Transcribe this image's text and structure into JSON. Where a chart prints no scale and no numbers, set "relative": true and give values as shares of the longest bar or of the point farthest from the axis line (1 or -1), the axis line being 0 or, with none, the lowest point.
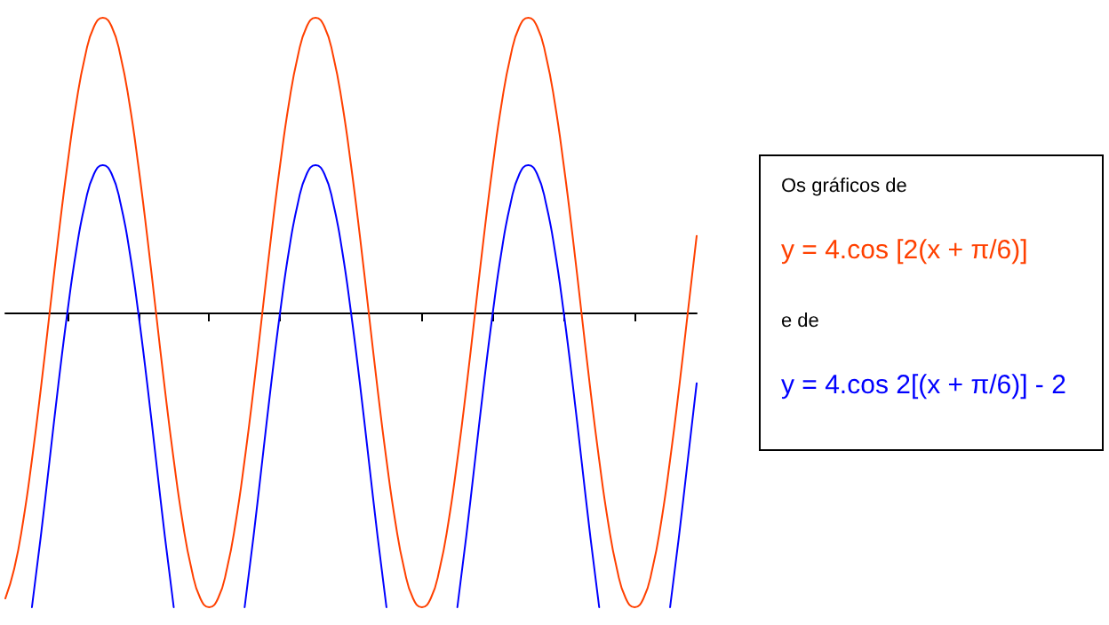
{
  "chart_data": {
    "type": "line",
    "relative": true,
    "grid": false,
    "legend": "right",
    "marker": "none",
    "line_style": "solid",
    "annotations": [
      "Os gráficos de",
      "e de"
    ],
    "categories": [
      null,
      null,
      null,
      null,
      null,
      null,
      null,
      null,
      null,
      null,
      null,
      null,
      null,
      null,
      null,
      null,
      null,
      null,
      null,
      null,
      null,
      null,
      null,
      null,
      null,
      null,
      null,
      null,
      null,
      null,
      null,
      null,
      null,
      null,
      null,
      null,
      null,
      null,
      null,
      null,
      null,
      null,
      null,
      null,
      null,
      null,
      null,
      null,
      null,
      null,
      null,
      null,
      null,
      null,
      null,
      null,
      null,
      null,
      null,
      null,
      null,
      null,
      null,
      null,
      null,
      null,
      null,
      null,
      null,
      null,
      null,
      null,
      null,
      null,
      null,
      null,
      null,
      null,
      null
    ],
    "series": [
      {
        "name": "y = 4.cos [2(x + π/6)]",
        "color": "#ff4000",
        "values": [
          -0.97,
          -0.87,
          -0.71,
          -0.5,
          -0.26,
          0,
          0.26,
          0.5,
          0.71,
          0.87,
          0.97,
          1,
          0.97,
          0.87,
          0.71,
          0.5,
          0.26,
          0,
          -0.26,
          -0.5,
          -0.71,
          -0.87,
          -0.97,
          -1,
          -0.97,
          -0.87,
          -0.71,
          -0.5,
          -0.26,
          0,
          0.26,
          0.5,
          0.71,
          0.87,
          0.97,
          1,
          0.97,
          0.87,
          0.71,
          0.5,
          0.26,
          0,
          -0.26,
          -0.5,
          -0.71,
          -0.87,
          -0.97,
          -1,
          -0.97,
          -0.87,
          -0.71,
          -0.5,
          -0.26,
          0,
          0.26,
          0.5,
          0.71,
          0.87,
          0.97,
          1,
          0.97,
          0.87,
          0.71,
          0.5,
          0.26,
          0,
          -0.26,
          -0.5,
          -0.71,
          -0.87,
          -0.97,
          -1,
          -0.97,
          -0.87,
          -0.71,
          -0.5,
          -0.26,
          0,
          0.26
        ]
      },
      {
        "name": "y = 4.cos 2[(x + π/6)] - 2",
        "color": "#0000ff",
        "values": [
          null,
          null,
          null,
          -1,
          -0.76,
          -0.5,
          -0.24,
          0,
          0.21,
          0.37,
          0.47,
          0.5,
          0.47,
          0.37,
          0.21,
          0,
          -0.24,
          -0.5,
          -0.76,
          -1,
          null,
          null,
          null,
          null,
          null,
          null,
          null,
          -1,
          -0.76,
          -0.5,
          -0.24,
          0,
          0.21,
          0.37,
          0.47,
          0.5,
          0.47,
          0.37,
          0.21,
          0,
          -0.24,
          -0.5,
          -0.76,
          -1,
          null,
          null,
          null,
          null,
          null,
          null,
          null,
          -1,
          -0.76,
          -0.5,
          -0.24,
          0,
          0.21,
          0.37,
          0.47,
          0.5,
          0.47,
          0.37,
          0.21,
          0,
          -0.24,
          -0.5,
          -0.76,
          -1,
          null,
          null,
          null,
          null,
          null,
          null,
          null,
          -1,
          -0.76,
          -0.5,
          -0.24
        ]
      }
    ]
  }
}
